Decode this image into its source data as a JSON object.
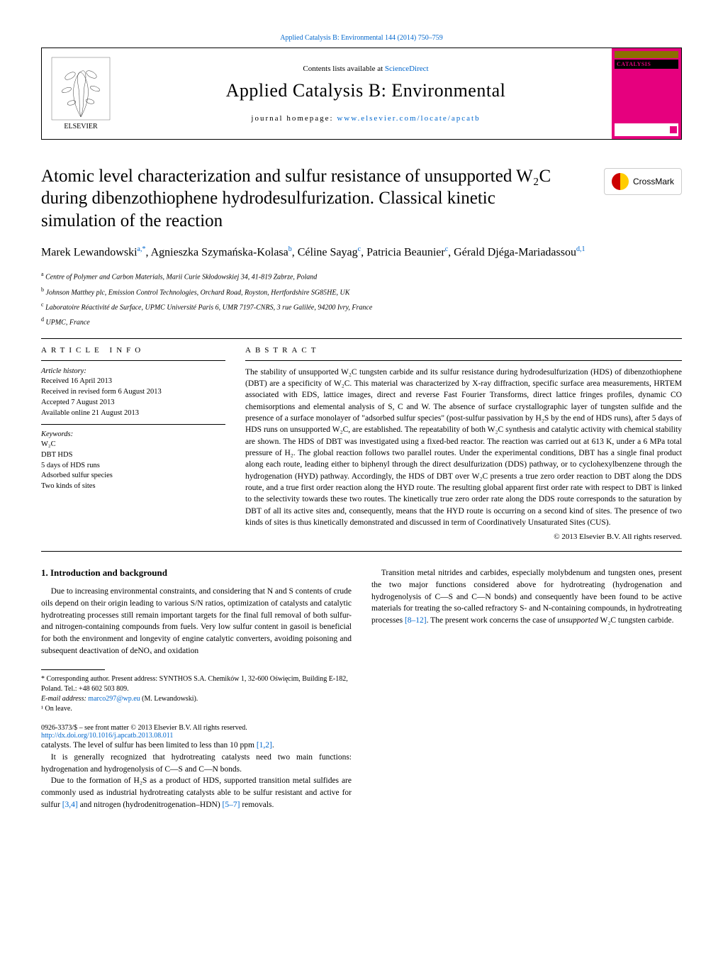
{
  "top_link": "Applied Catalysis B: Environmental 144 (2014) 750–759",
  "header": {
    "contents_prefix": "Contents lists available at ",
    "contents_link": "ScienceDirect",
    "journal_name": "Applied Catalysis B: Environmental",
    "homepage_prefix": "journal homepage: ",
    "homepage_link": "www.elsevier.com/locate/apcatb",
    "cover_label": "CATALYSIS"
  },
  "crossmark": "CrossMark",
  "title": "Atomic level characterization and sulfur resistance of unsupported W₂C during dibenzothiophene hydrodesulfurization. Classical kinetic simulation of the reaction",
  "authors_html": "Marek Lewandowski<sup>a,*</sup>, Agnieszka Szymańska-Kolasa<sup>b</sup>, Céline Sayag<sup>c</sup>, Patricia Beaunier<sup>c</sup>, Gérald Djéga-Mariadassou<sup>d,1</sup>",
  "affiliations": [
    {
      "sup": "a",
      "text": "Centre of Polymer and Carbon Materials, Marii Curie Skłodowskiej 34, 41-819 Zabrze, Poland"
    },
    {
      "sup": "b",
      "text": "Johnson Matthey plc, Emission Control Technologies, Orchard Road, Royston, Hertfordshire SG85HE, UK"
    },
    {
      "sup": "c",
      "text": "Laboratoire Réactivité de Surface, UPMC Université Paris 6, UMR 7197-CNRS, 3 rue Galilée, 94200 Ivry, France"
    },
    {
      "sup": "d",
      "text": "UPMC, France"
    }
  ],
  "article_info": {
    "head": "ARTICLE INFO",
    "history_label": "Article history:",
    "history": [
      "Received 16 April 2013",
      "Received in revised form 6 August 2013",
      "Accepted 7 August 2013",
      "Available online 21 August 2013"
    ],
    "keywords_label": "Keywords:",
    "keywords": [
      "W₂C",
      "DBT HDS",
      "5 days of HDS runs",
      "Adsorbed sulfur species",
      "Two kinds of sites"
    ]
  },
  "abstract": {
    "head": "ABSTRACT",
    "text": "The stability of unsupported W₂C tungsten carbide and its sulfur resistance during hydrodesulfurization (HDS) of dibenzothiophene (DBT) are a specificity of W₂C. This material was characterized by X-ray diffraction, specific surface area measurements, HRTEM associated with EDS, lattice images, direct and reverse Fast Fourier Transforms, direct lattice fringes profiles, dynamic CO chemisorptions and elemental analysis of S, C and W. The absence of surface crystallographic layer of tungsten sulfide and the presence of a surface monolayer of \"adsorbed sulfur species\" (post-sulfur passivation by H₂S by the end of HDS runs), after 5 days of HDS runs on unsupported W₂C, are established. The repeatability of both W₂C synthesis and catalytic activity with chemical stability are shown. The HDS of DBT was investigated using a fixed-bed reactor. The reaction was carried out at 613 K, under a 6 MPa total pressure of H₂. The global reaction follows two parallel routes. Under the experimental conditions, DBT has a single final product along each route, leading either to biphenyl through the direct desulfurization (DDS) pathway, or to cyclohexylbenzene through the hydrogenation (HYD) pathway. Accordingly, the HDS of DBT over W₂C presents a true zero order reaction to DBT along the DDS route, and a true first order reaction along the HYD route. The resulting global apparent first order rate with respect to DBT is linked to the selectivity towards these two routes. The kinetically true zero order rate along the DDS route corresponds to the saturation by DBT of all its active sites and, consequently, means that the HYD route is occurring on a second kind of sites. The presence of two kinds of sites is thus kinetically demonstrated and discussed in term of Coordinatively Unsaturated Sites (CUS).",
    "copyright": "© 2013 Elsevier B.V. All rights reserved."
  },
  "intro": {
    "head": "1.  Introduction and background",
    "paragraphs": [
      "Due to increasing environmental constraints, and considering that N and S contents of crude oils depend on their origin leading to various S/N ratios, optimization of catalysts and catalytic hydrotreating processes still remain important targets for the final full removal of both sulfur- and nitrogen-containing compounds from fuels. Very low sulfur content in gasoil is beneficial for both the environment and longevity of engine catalytic converters, avoiding poisoning and subsequent deactivation of deNOₓ and oxidation",
      "catalysts. The level of sulfur has been limited to less than 10 ppm [1,2].",
      "It is generally recognized that hydrotreating catalysts need two main functions: hydrogenation and hydrogenolysis of C—S and C—N bonds.",
      "Due to the formation of H₂S as a product of HDS, supported transition metal sulfides are commonly used as industrial hydrotreating catalysts able to be sulfur resistant and active for sulfur [3,4] and nitrogen (hydrodenitrogenation–HDN) [5–7] removals.",
      "Transition metal nitrides and carbides, especially molybdenum and tungsten ones, present the two major functions considered above for hydrotreating (hydrogenation and hydrogenolysis of C—S and C—N bonds) and consequently have been found to be active materials for treating the so-called refractory S- and N-containing compounds, in hydrotreating processes [8–12]. The present work concerns the case of unsupported W₂C tungsten carbide."
    ]
  },
  "footnotes": {
    "corresponding": "* Corresponding author. Present address: SYNTHOS S.A. Chemików 1, 32-600 Oświęcim, Building E-182, Poland. Tel.: +48 602 503 809.",
    "email_label": "E-mail address: ",
    "email": "marco297@wp.eu",
    "email_suffix": " (M. Lewandowski).",
    "onleave": "¹ On leave."
  },
  "footer": {
    "line1": "0926-3373/$ – see front matter © 2013 Elsevier B.V. All rights reserved.",
    "doi": "http://dx.doi.org/10.1016/j.apcatb.2013.08.011"
  },
  "colors": {
    "link": "#0066cc",
    "magenta": "#e6007e",
    "red": "#cc0000",
    "yellow": "#ffcc00",
    "olive": "#8b6f00"
  }
}
